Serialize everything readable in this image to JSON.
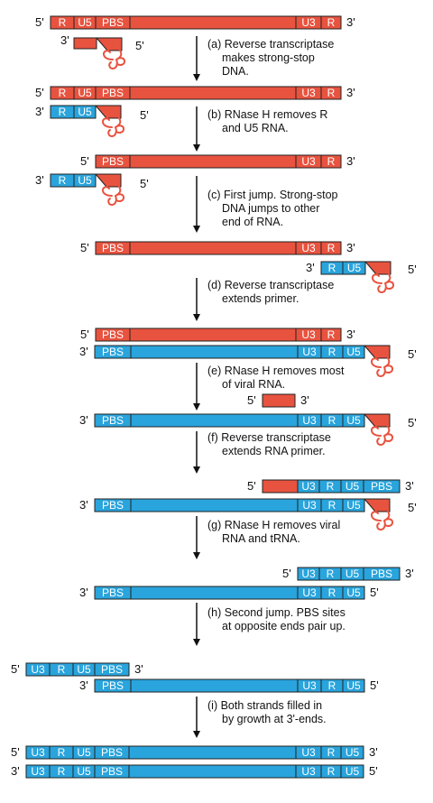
{
  "colors": {
    "rna": "#e8533f",
    "dna": "#29a4dc",
    "border": "#222222",
    "arrow": "#111111",
    "trna": "#e8533f"
  },
  "end_labels": {
    "five": "5'",
    "three": "3'"
  },
  "segments": {
    "R": "R",
    "U5": "U5",
    "PBS": "PBS",
    "U3": "U3"
  },
  "steps": [
    {
      "id": "a",
      "lines": [
        "(a) Reverse transcriptase",
        "makes strong-stop",
        "DNA."
      ]
    },
    {
      "id": "b",
      "lines": [
        "(b) RNase H removes R",
        "and U5 RNA."
      ]
    },
    {
      "id": "c",
      "lines": [
        "(c) First jump. Strong-stop",
        "DNA jumps to other",
        "end of RNA."
      ]
    },
    {
      "id": "d",
      "lines": [
        "(d) Reverse transcriptase",
        "extends primer."
      ]
    },
    {
      "id": "e",
      "lines": [
        "(e) RNase H removes most",
        "of viral RNA."
      ]
    },
    {
      "id": "f",
      "lines": [
        "(f)  Reverse transcriptase",
        "extends RNA primer."
      ]
    },
    {
      "id": "g",
      "lines": [
        "(g) RNase H removes viral",
        "RNA and tRNA."
      ]
    },
    {
      "id": "h",
      "lines": [
        "(h) Second jump. PBS sites",
        "at opposite ends pair up."
      ]
    },
    {
      "id": "i",
      "lines": [
        "(i) Both strands filled in",
        "by growth at 3'-ends."
      ]
    }
  ]
}
